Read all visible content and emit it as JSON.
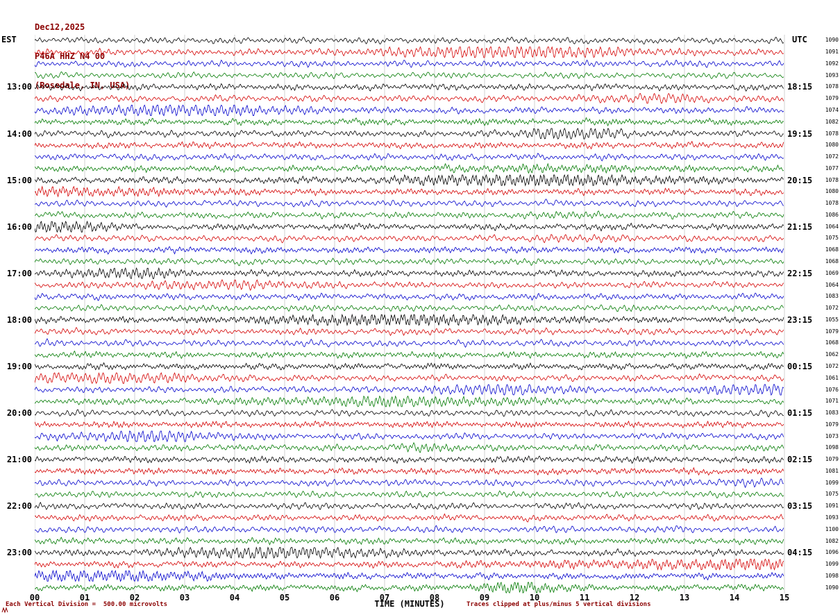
{
  "header": {
    "date": "Dec12,2025",
    "station": "P46A HHZ N4 00",
    "location": "(Rosedale, IN, USA)"
  },
  "axes": {
    "left_label": "EST",
    "right_label": "UTC",
    "x_axis_title": "TIME (MINUTES)",
    "x_ticks": [
      "00",
      "01",
      "02",
      "03",
      "04",
      "05",
      "06",
      "07",
      "08",
      "09",
      "10",
      "11",
      "12",
      "13",
      "14",
      "15"
    ]
  },
  "footer": {
    "left_note": "Each Vertical Division =  500.00 microvolts",
    "right_note": "Traces clipped at plus/minus 5 vertical divisions"
  },
  "colors": {
    "black": "#000000",
    "red": "#d40000",
    "blue": "#0000cc",
    "green": "#007a00",
    "annotation": "#8b0000",
    "grid": "#b4b4b4"
  },
  "chart_data": {
    "type": "line",
    "subtype": "helicorder-seismogram",
    "title": "P46A HHZ N4 00 (Rosedale, IN, USA) Dec12,2025",
    "xlabel": "TIME (MINUTES)",
    "x_range": [
      0,
      15
    ],
    "minutes_per_row": 15,
    "rows_per_hour": 4,
    "vertical_division_microvolts": 500.0,
    "clip_divisions": 5,
    "row_color_cycle": [
      "black",
      "red",
      "blue",
      "green"
    ],
    "rows": [
      {
        "est": "",
        "utc": "",
        "amp": "1090",
        "color": "black"
      },
      {
        "est": "",
        "utc": "",
        "amp": "1091",
        "color": "red"
      },
      {
        "est": "",
        "utc": "",
        "amp": "1092",
        "color": "blue"
      },
      {
        "est": "",
        "utc": "",
        "amp": "1093",
        "color": "green"
      },
      {
        "est": "13:00",
        "utc": "18:15",
        "amp": "1078",
        "color": "black"
      },
      {
        "est": "",
        "utc": "",
        "amp": "1079",
        "color": "red"
      },
      {
        "est": "",
        "utc": "",
        "amp": "1074",
        "color": "blue"
      },
      {
        "est": "",
        "utc": "",
        "amp": "1082",
        "color": "green"
      },
      {
        "est": "14:00",
        "utc": "19:15",
        "amp": "1078",
        "color": "black"
      },
      {
        "est": "",
        "utc": "",
        "amp": "1080",
        "color": "red"
      },
      {
        "est": "",
        "utc": "",
        "amp": "1072",
        "color": "blue"
      },
      {
        "est": "",
        "utc": "",
        "amp": "1077",
        "color": "green"
      },
      {
        "est": "15:00",
        "utc": "20:15",
        "amp": "1078",
        "color": "black"
      },
      {
        "est": "",
        "utc": "",
        "amp": "1080",
        "color": "red"
      },
      {
        "est": "",
        "utc": "",
        "amp": "1078",
        "color": "blue"
      },
      {
        "est": "",
        "utc": "",
        "amp": "1086",
        "color": "green"
      },
      {
        "est": "16:00",
        "utc": "21:15",
        "amp": "1064",
        "color": "black"
      },
      {
        "est": "",
        "utc": "",
        "amp": "1075",
        "color": "red"
      },
      {
        "est": "",
        "utc": "",
        "amp": "1068",
        "color": "blue"
      },
      {
        "est": "",
        "utc": "",
        "amp": "1068",
        "color": "green"
      },
      {
        "est": "17:00",
        "utc": "22:15",
        "amp": "1069",
        "color": "black"
      },
      {
        "est": "",
        "utc": "",
        "amp": "1064",
        "color": "red"
      },
      {
        "est": "",
        "utc": "",
        "amp": "1083",
        "color": "blue"
      },
      {
        "est": "",
        "utc": "",
        "amp": "1072",
        "color": "green"
      },
      {
        "est": "18:00",
        "utc": "23:15",
        "amp": "1055",
        "color": "black"
      },
      {
        "est": "",
        "utc": "",
        "amp": "1079",
        "color": "red"
      },
      {
        "est": "",
        "utc": "",
        "amp": "1068",
        "color": "blue"
      },
      {
        "est": "",
        "utc": "",
        "amp": "1062",
        "color": "green"
      },
      {
        "est": "19:00",
        "utc": "00:15",
        "amp": "1072",
        "color": "black"
      },
      {
        "est": "",
        "utc": "",
        "amp": "1061",
        "color": "red"
      },
      {
        "est": "",
        "utc": "",
        "amp": "1076",
        "color": "blue"
      },
      {
        "est": "",
        "utc": "",
        "amp": "1071",
        "color": "green"
      },
      {
        "est": "20:00",
        "utc": "01:15",
        "amp": "1083",
        "color": "black"
      },
      {
        "est": "",
        "utc": "",
        "amp": "1079",
        "color": "red"
      },
      {
        "est": "",
        "utc": "",
        "amp": "1073",
        "color": "blue"
      },
      {
        "est": "",
        "utc": "",
        "amp": "1098",
        "color": "green"
      },
      {
        "est": "21:00",
        "utc": "02:15",
        "amp": "1079",
        "color": "black"
      },
      {
        "est": "",
        "utc": "",
        "amp": "1081",
        "color": "red"
      },
      {
        "est": "",
        "utc": "",
        "amp": "1099",
        "color": "blue"
      },
      {
        "est": "",
        "utc": "",
        "amp": "1075",
        "color": "green"
      },
      {
        "est": "22:00",
        "utc": "03:15",
        "amp": "1091",
        "color": "black"
      },
      {
        "est": "",
        "utc": "",
        "amp": "1093",
        "color": "red"
      },
      {
        "est": "",
        "utc": "",
        "amp": "1100",
        "color": "blue"
      },
      {
        "est": "",
        "utc": "",
        "amp": "1082",
        "color": "green"
      },
      {
        "est": "23:00",
        "utc": "04:15",
        "amp": "1096",
        "color": "black"
      },
      {
        "est": "",
        "utc": "",
        "amp": "1099",
        "color": "red"
      },
      {
        "est": "",
        "utc": "",
        "amp": "1098",
        "color": "blue"
      },
      {
        "est": "",
        "utc": "",
        "amp": "1090",
        "color": "green"
      }
    ]
  }
}
